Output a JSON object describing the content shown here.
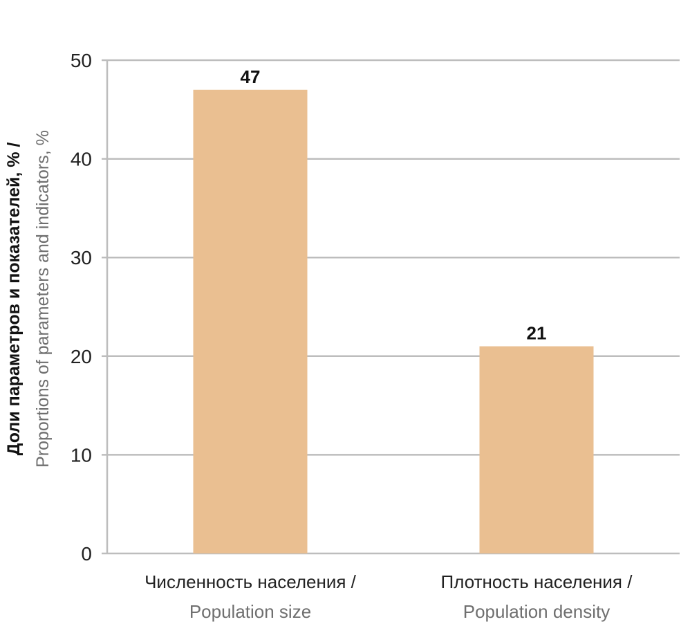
{
  "chart_data": {
    "type": "bar",
    "categories": [
      {
        "ru": "Численность населения /",
        "en": "Population size"
      },
      {
        "ru": "Плотность населения /",
        "en": "Population density"
      }
    ],
    "values": [
      47,
      21
    ],
    "value_labels": [
      "47",
      "21"
    ],
    "ylabel": {
      "ru": "Доли параметров и показателей, % /",
      "en": "Proportions of parameters and indicators, %"
    },
    "xlabel": "",
    "ylim": [
      0,
      50
    ],
    "yticks": [
      "0",
      "10",
      "20",
      "30",
      "40",
      "50"
    ],
    "grid": true,
    "colors": {
      "bar": "#EABF91",
      "grid": "#BDBDBD",
      "axis": "#BDBDBD"
    }
  }
}
